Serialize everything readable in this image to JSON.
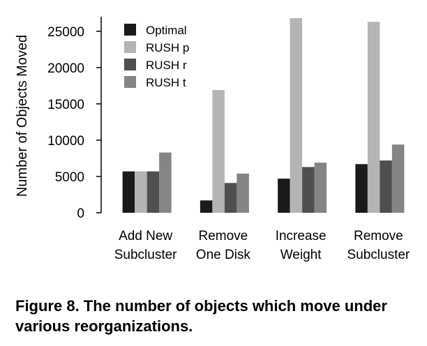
{
  "caption": "Figure 8. The number of objects which move under various reorganizations.",
  "chart_data": {
    "type": "bar",
    "title": "",
    "xlabel": "",
    "ylabel": "Number of Objects Moved",
    "ylim": [
      0,
      27000
    ],
    "yticks": [
      0,
      5000,
      10000,
      15000,
      20000,
      25000
    ],
    "grid": false,
    "legend_position": "top-left",
    "categories": [
      [
        "Add New",
        "Subcluster"
      ],
      [
        "Remove",
        "One Disk"
      ],
      [
        "Increase",
        "Weight"
      ],
      [
        "Remove",
        "Subcluster"
      ]
    ],
    "series": [
      {
        "name": "Optimal",
        "color": "#1a1a1a",
        "values": [
          5700,
          1700,
          4700,
          6700
        ]
      },
      {
        "name": "RUSH p",
        "color": "#b4b4b4",
        "values": [
          5700,
          16900,
          26800,
          26300
        ]
      },
      {
        "name": "RUSH r",
        "color": "#4f4f4f",
        "values": [
          5700,
          4100,
          6300,
          7200
        ]
      },
      {
        "name": "RUSH t",
        "color": "#858585",
        "values": [
          8300,
          5400,
          6900,
          9400
        ]
      }
    ]
  }
}
